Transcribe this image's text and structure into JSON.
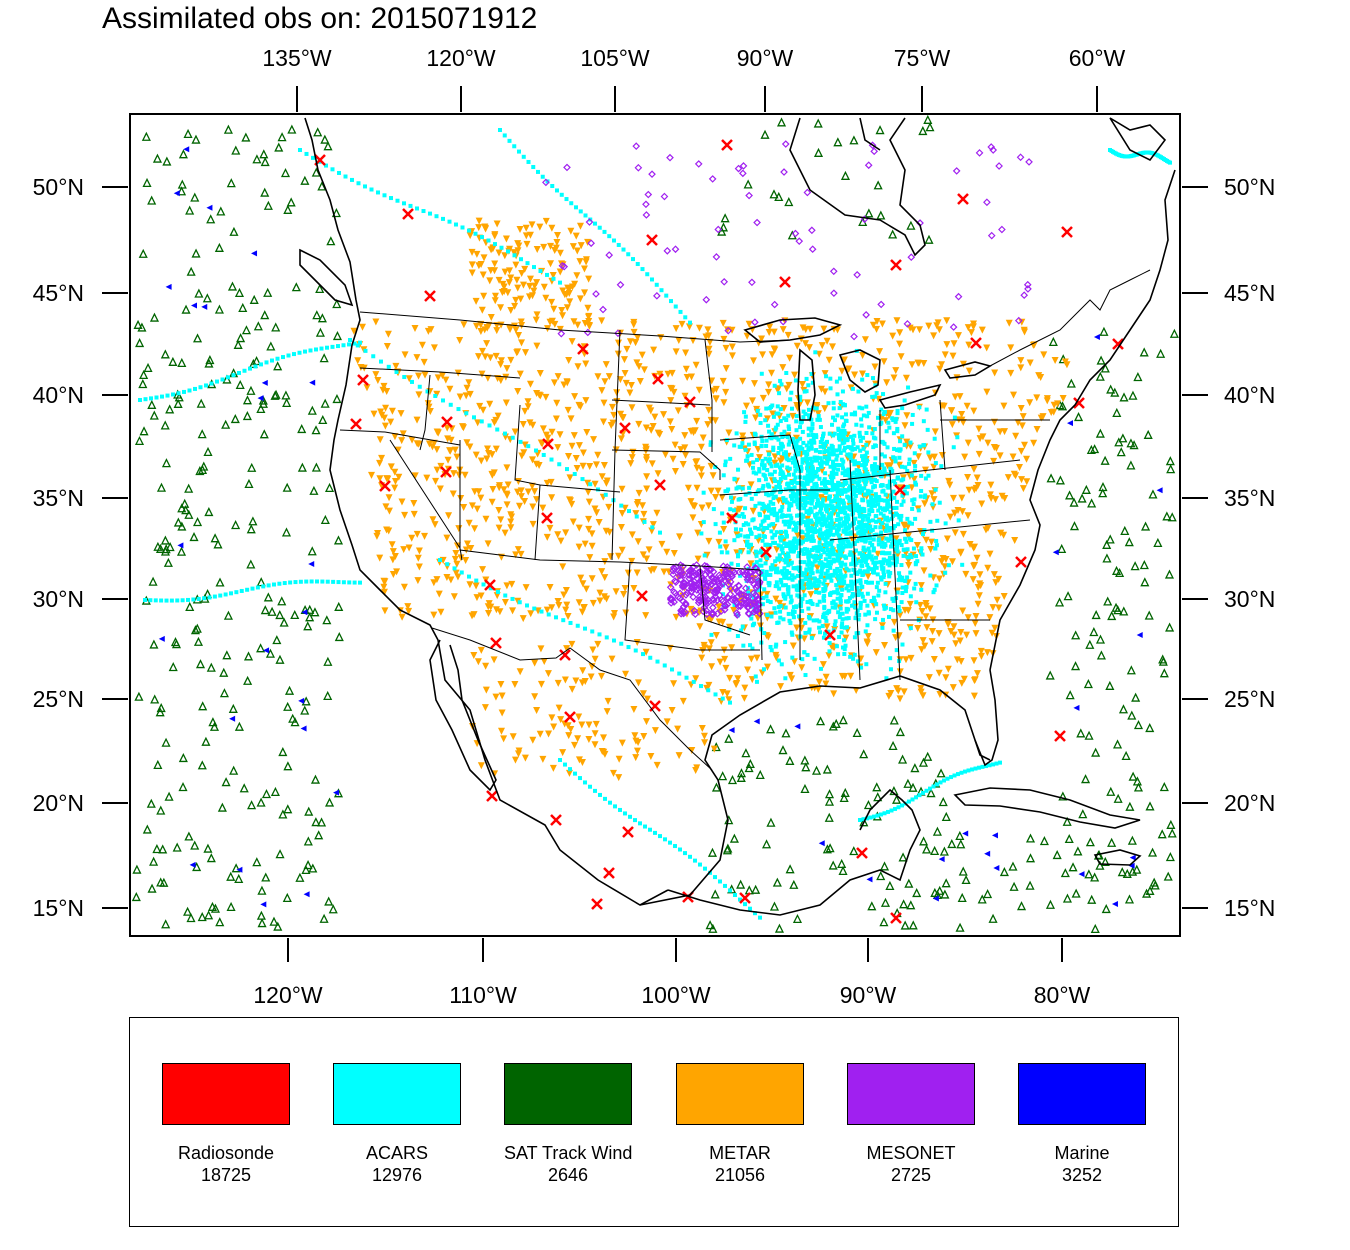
{
  "title": "Assimilated obs on: 2015071912",
  "axes": {
    "top_lon_labels": [
      "135°W",
      "120°W",
      "105°W",
      "90°W",
      "75°W",
      "60°W"
    ],
    "bottom_lon_labels": [
      "120°W",
      "110°W",
      "100°W",
      "90°W",
      "80°W"
    ],
    "lat_labels": [
      "50°N",
      "45°N",
      "40°N",
      "35°N",
      "30°N",
      "25°N",
      "20°N",
      "15°N"
    ]
  },
  "legend": [
    {
      "label": "Radiosonde",
      "count": "18725",
      "color": "#ff0000"
    },
    {
      "label": "ACARS",
      "count": "12976",
      "color": "#00ffff"
    },
    {
      "label": "SAT Track Wind",
      "count": "2646",
      "color": "#006400"
    },
    {
      "label": "METAR",
      "count": "21056",
      "color": "#ffa500"
    },
    {
      "label": "MESONET",
      "count": "2725",
      "color": "#a020f0"
    },
    {
      "label": "Marine",
      "count": "3252",
      "color": "#0000ff"
    }
  ],
  "map": {
    "region": "Continental United States, Mexico, Gulf of Mexico, Caribbean",
    "background": "#ffffff",
    "coast_color": "#000000"
  }
}
